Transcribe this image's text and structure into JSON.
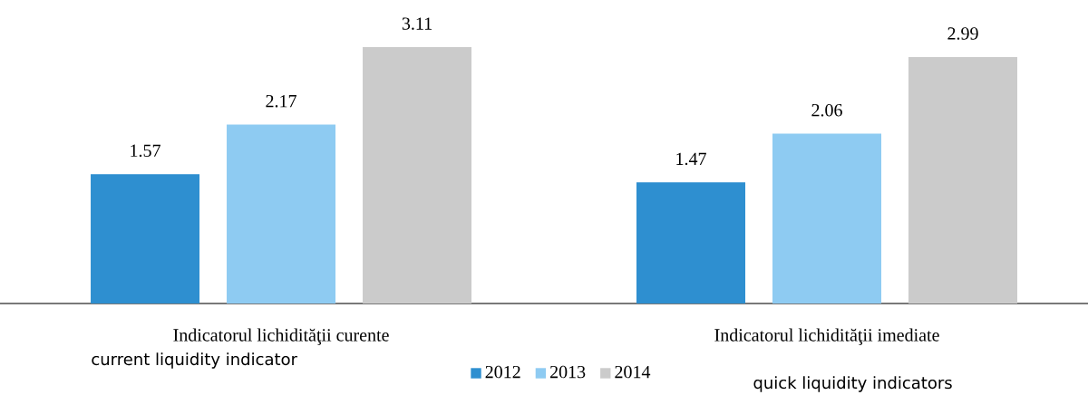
{
  "chart_data": {
    "type": "bar",
    "categories": [
      "Indicatorul lichidităţii curente",
      "Indicatorul lichidităţii imediate"
    ],
    "series": [
      {
        "name": "2012",
        "color": "#2e8fd0",
        "values": [
          1.57,
          1.47
        ]
      },
      {
        "name": "2013",
        "color": "#8ecbf2",
        "values": [
          2.17,
          2.06
        ]
      },
      {
        "name": "2014",
        "color": "#cbcbcb",
        "values": [
          3.11,
          2.99
        ]
      }
    ],
    "data_labels": true,
    "legend": "bottom",
    "annotations": [
      "current liquidity indicator",
      "quick liquidity indicators"
    ]
  }
}
